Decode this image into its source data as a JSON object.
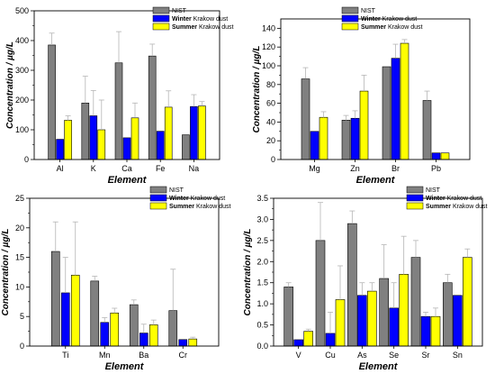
{
  "colors": {
    "NIST": "#808080",
    "Winter": "#0000ff",
    "Summer": "#ffff00",
    "error_bar": "#b5b5b5"
  },
  "legend": [
    {
      "key": "NIST",
      "bold": "",
      "text": "NIST"
    },
    {
      "key": "Winter",
      "bold": "Winter",
      "text": " Krakow dust"
    },
    {
      "key": "Summer",
      "bold": "Summer",
      "text": " Krakow dust"
    }
  ],
  "chart_data": [
    {
      "type": "bar",
      "categories": [
        "Al",
        "K",
        "Ca",
        "Fe",
        "Na"
      ],
      "series": [
        {
          "name": "NIST",
          "values": [
            385,
            190,
            325,
            348,
            83
          ],
          "errors": [
            40,
            90,
            105,
            40,
            0
          ]
        },
        {
          "name": "Winter Krakow dust",
          "values": [
            68,
            147,
            73,
            95,
            178
          ],
          "errors": [
            0,
            85,
            0,
            0,
            40
          ]
        },
        {
          "name": "Summer Krakow dust",
          "values": [
            132,
            100,
            140,
            176,
            180
          ],
          "errors": [
            15,
            100,
            50,
            55,
            15
          ]
        }
      ],
      "xlabel": "Element",
      "ylabel": "Concentration / µg/L",
      "ylim": [
        0,
        500
      ],
      "yticks": [
        0,
        100,
        200,
        300,
        400,
        500
      ],
      "legend": "top-right"
    },
    {
      "type": "bar",
      "categories": [
        "Mg",
        "Zn",
        "Br",
        "Pb"
      ],
      "series": [
        {
          "name": "NIST",
          "values": [
            86,
            42,
            99,
            63
          ],
          "errors": [
            12,
            5,
            0,
            10
          ]
        },
        {
          "name": "Winter Krakow dust",
          "values": [
            30,
            44,
            108,
            7
          ],
          "errors": [
            0,
            8,
            15,
            0
          ]
        },
        {
          "name": "Summer Krakow dust",
          "values": [
            45,
            73,
            124,
            7
          ],
          "errors": [
            6,
            17,
            4,
            0
          ]
        }
      ],
      "xlabel": "Element",
      "ylabel": "Concentration / µg/L",
      "ylim": [
        0,
        150
      ],
      "yticks": [
        0,
        20,
        40,
        60,
        80,
        100,
        120,
        140
      ],
      "legend": "top-right"
    },
    {
      "type": "bar",
      "categories": [
        "Ti",
        "Mn",
        "Ba",
        "Cr"
      ],
      "series": [
        {
          "name": "NIST",
          "values": [
            16,
            11,
            7,
            6
          ],
          "errors": [
            5,
            0.8,
            0.8,
            7
          ]
        },
        {
          "name": "Winter Krakow dust",
          "values": [
            9,
            4,
            2.2,
            1.1
          ],
          "errors": [
            6,
            0.8,
            1.5,
            0
          ]
        },
        {
          "name": "Summer Krakow dust",
          "values": [
            12,
            5.6,
            3.6,
            1.2
          ],
          "errors": [
            9,
            0.8,
            0.8,
            0.3
          ]
        }
      ],
      "xlabel": "Element",
      "ylabel": "Concentration / µg/L",
      "ylim": [
        0,
        25
      ],
      "yticks": [
        0,
        5,
        10,
        15,
        20,
        25
      ],
      "legend": "top-right"
    },
    {
      "type": "bar",
      "categories": [
        "V",
        "Cu",
        "As",
        "Se",
        "Sr",
        "Sn"
      ],
      "series": [
        {
          "name": "NIST",
          "values": [
            1.4,
            2.5,
            2.9,
            1.6,
            2.1,
            1.5
          ],
          "errors": [
            0.1,
            0.9,
            0.3,
            0.8,
            0.4,
            0.2
          ]
        },
        {
          "name": "Winter Krakow dust",
          "values": [
            0.15,
            0.3,
            1.2,
            0.9,
            0.7,
            1.2
          ],
          "errors": [
            0,
            0.5,
            0.3,
            0.6,
            0.1,
            0
          ]
        },
        {
          "name": "Summer Krakow dust",
          "values": [
            0.35,
            1.1,
            1.3,
            1.7,
            0.7,
            2.1
          ],
          "errors": [
            0.05,
            0.8,
            0.2,
            0.9,
            0.2,
            0.2
          ]
        }
      ],
      "xlabel": "Element",
      "ylabel": "Concentration / µg/L",
      "ylim": [
        0,
        3.5
      ],
      "yticks": [
        0,
        0.5,
        1.0,
        1.5,
        2.0,
        2.5,
        3.0,
        3.5
      ],
      "legend": "top-right"
    }
  ]
}
